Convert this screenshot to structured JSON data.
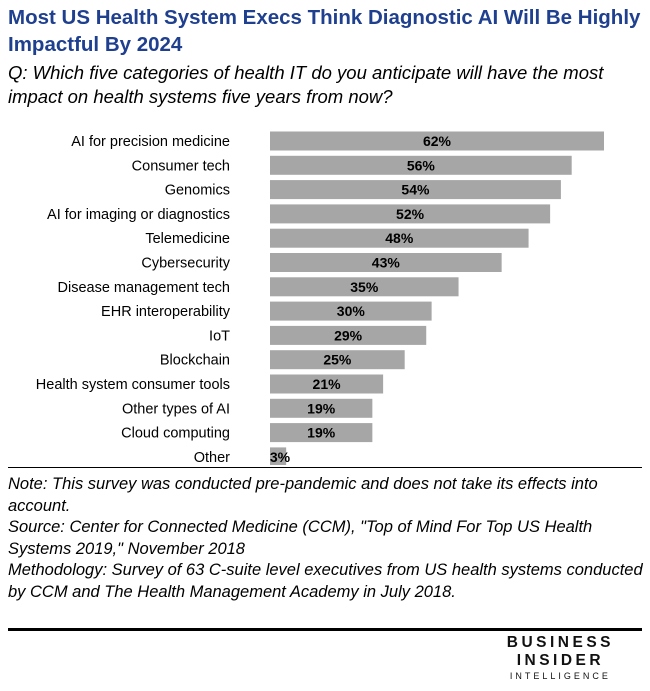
{
  "title": "Most US Health System Execs Think Diagnostic AI Will Be Highly Impactful By 2024",
  "question": "Q: Which five categories of health IT do you anticipate will have the most impact on health systems five years from now?",
  "chart_data": {
    "type": "bar",
    "orientation": "horizontal",
    "categories": [
      "AI for precision medicine",
      "Consumer tech",
      "Genomics",
      "AI for imaging or diagnostics",
      "Telemedicine",
      "Cybersecurity",
      "Disease management tech",
      "EHR interoperability",
      "IoT",
      "Blockchain",
      "Health system consumer tools",
      "Other types of AI",
      "Cloud computing",
      "Other"
    ],
    "values": [
      62,
      56,
      54,
      52,
      48,
      43,
      35,
      30,
      29,
      25,
      21,
      19,
      19,
      3
    ],
    "value_labels": [
      "62%",
      "56%",
      "54%",
      "52%",
      "48%",
      "43%",
      "35%",
      "30%",
      "29%",
      "25%",
      "21%",
      "19%",
      "19%",
      "3%"
    ],
    "unit": "%",
    "xlim": [
      0,
      62
    ],
    "grid": false,
    "bar_color": "#a6a6a6"
  },
  "notes": {
    "note": "Note: This survey was conducted pre-pandemic and does not take its effects into account.",
    "source": "Source: Center for Connected Medicine (CCM), \"Top of Mind For Top US Health Systems 2019,\" November 2018",
    "methodology": "Methodology: Survey of 63 C-suite level executives from US health systems conducted by CCM and The Health Management Academy in July 2018."
  },
  "brand": {
    "line1": "BUSINESS",
    "line2": "INSIDER",
    "line3": "INTELLIGENCE"
  }
}
